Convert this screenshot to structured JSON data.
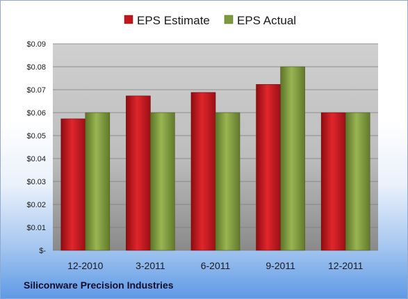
{
  "caption": "Siliconware Precision Industries",
  "colors": {
    "estimate": "#c0161c",
    "actual": "#7e9a3c"
  },
  "chart_data": {
    "type": "bar",
    "categories": [
      "12-2010",
      "3-2011",
      "6-2011",
      "9-2011",
      "12-2011"
    ],
    "series": [
      {
        "name": "EPS Estimate",
        "values": [
          0.0573,
          0.0673,
          0.0688,
          0.0723,
          0.06
        ]
      },
      {
        "name": "EPS Actual",
        "values": [
          0.06,
          0.06,
          0.06,
          0.08,
          0.06
        ]
      }
    ],
    "yticks": [
      {
        "value": 0,
        "label": "$-"
      },
      {
        "value": 0.01,
        "label": "$0.01"
      },
      {
        "value": 0.02,
        "label": "$0.02"
      },
      {
        "value": 0.03,
        "label": "$0.03"
      },
      {
        "value": 0.04,
        "label": "$0.04"
      },
      {
        "value": 0.05,
        "label": "$0.05"
      },
      {
        "value": 0.06,
        "label": "$0.06"
      },
      {
        "value": 0.07,
        "label": "$0.07"
      },
      {
        "value": 0.08,
        "label": "$0.08"
      },
      {
        "value": 0.09,
        "label": "$0.09"
      }
    ],
    "ylim": [
      0,
      0.09
    ],
    "grid": true,
    "legend": "top"
  }
}
